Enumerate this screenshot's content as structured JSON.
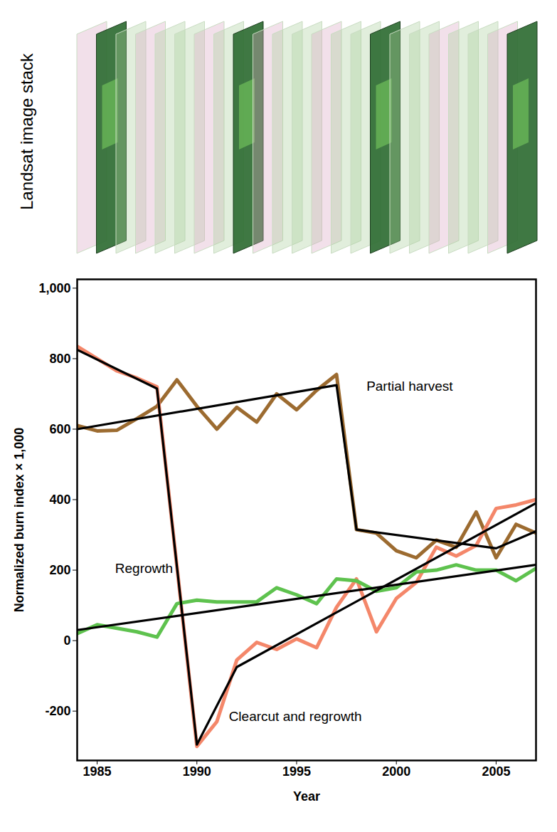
{
  "illustration": {
    "label": "Landsat image stack"
  },
  "chart_data": {
    "type": "line",
    "x_label": "Year",
    "y_label": "Normalized burn index × 1,000",
    "xlim": [
      1984,
      2007
    ],
    "xticks": [
      1985,
      1990,
      1995,
      2000,
      2005
    ],
    "ylim": [
      -340,
      1025
    ],
    "yticks": [
      -200,
      0,
      200,
      400,
      600,
      800,
      {
        "value": 1000,
        "label": "1,000"
      }
    ],
    "x": [
      1984,
      1985,
      1986,
      1987,
      1988,
      1989,
      1990,
      1991,
      1992,
      1993,
      1994,
      1995,
      1996,
      1997,
      1998,
      1999,
      2000,
      2001,
      2002,
      2003,
      2004,
      2005,
      2006,
      2007
    ],
    "series": [
      {
        "name": "Partial harvest",
        "color": "#9c6b30",
        "label": {
          "x": 1998.5,
          "y": 722
        },
        "values": [
          610,
          595,
          597,
          630,
          665,
          740,
          665,
          600,
          662,
          620,
          700,
          655,
          710,
          755,
          315,
          305,
          255,
          235,
          285,
          265,
          365,
          235,
          330,
          305
        ]
      },
      {
        "name": "Clearcut and regrowth",
        "color": "#f4876a",
        "label": {
          "x": 1991.6,
          "y": -215
        },
        "values": [
          835,
          800,
          765,
          745,
          720,
          210,
          -300,
          -230,
          -55,
          -5,
          -25,
          5,
          -20,
          95,
          175,
          25,
          120,
          165,
          265,
          240,
          270,
          375,
          385,
          400
        ]
      },
      {
        "name": "Regrowth",
        "color": "#5ec24e",
        "label": {
          "x": 1985.9,
          "y": 205
        },
        "values": [
          20,
          45,
          35,
          25,
          10,
          105,
          115,
          110,
          110,
          110,
          150,
          130,
          105,
          175,
          170,
          140,
          150,
          195,
          200,
          215,
          200,
          200,
          170,
          205
        ]
      },
      {
        "color": "#000000",
        "x": [
          1984,
          1997,
          1998,
          2005,
          2007
        ],
        "values": [
          600,
          725,
          315,
          262,
          310
        ]
      },
      {
        "color": "#000000",
        "x": [
          1984,
          1988,
          1990,
          1992,
          2007
        ],
        "values": [
          825,
          715,
          -295,
          -75,
          390
        ]
      },
      {
        "color": "#000000",
        "x": [
          1984,
          2007
        ],
        "values": [
          30,
          215
        ]
      }
    ]
  }
}
